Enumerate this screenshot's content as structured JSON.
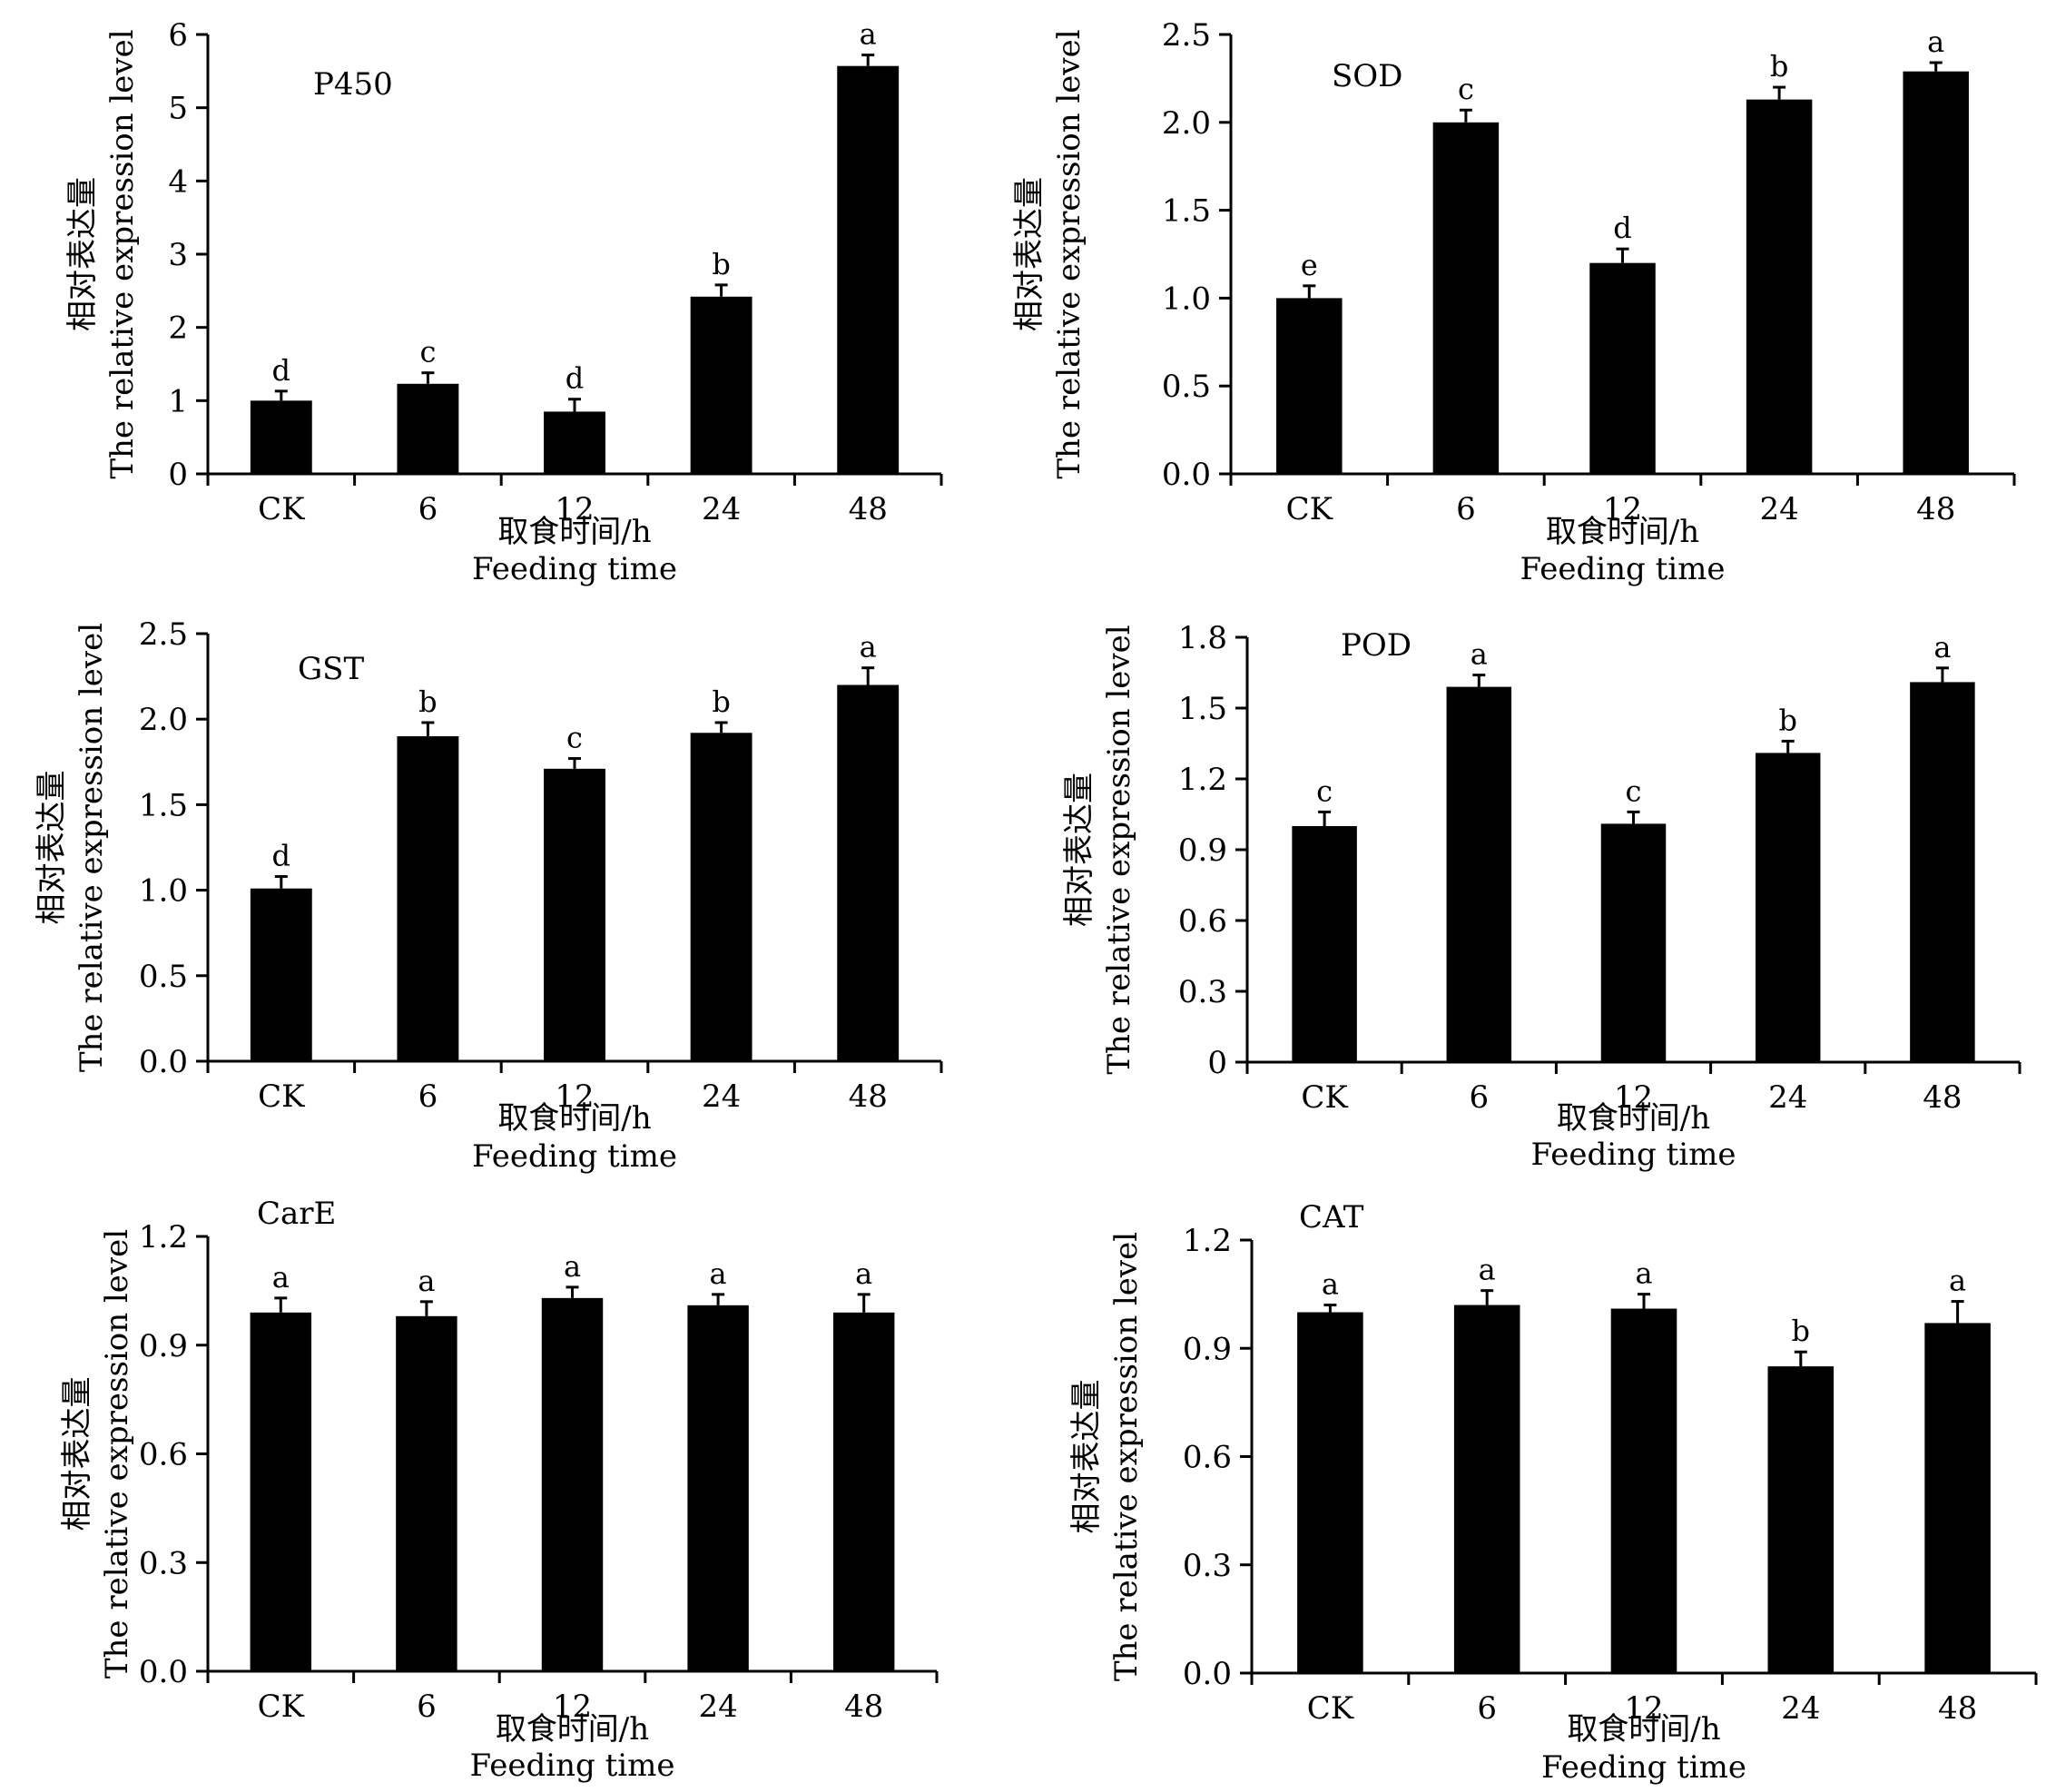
{
  "chart_data": [
    {
      "type": "bar",
      "title": "P450",
      "categories": [
        "CK",
        "6",
        "12",
        "24",
        "48"
      ],
      "values": [
        1.0,
        1.23,
        0.85,
        2.42,
        5.57
      ],
      "errors": [
        0.13,
        0.15,
        0.17,
        0.16,
        0.15
      ],
      "significance": [
        "d",
        "c",
        "d",
        "b",
        "a"
      ],
      "ylim": [
        0,
        6
      ],
      "yticks": [
        "0",
        "1",
        "2",
        "3",
        "4",
        "5",
        "6"
      ],
      "ylabel_cn": "相对表达量",
      "ylabel_en": "The relative expression level",
      "xlabel_cn": "取食时间/h",
      "xlabel_en": "Feeding time",
      "bar_color": "#000000"
    },
    {
      "type": "bar",
      "title": "SOD",
      "categories": [
        "CK",
        "6",
        "12",
        "24",
        "48"
      ],
      "values": [
        1.0,
        2.0,
        1.2,
        2.13,
        2.29
      ],
      "errors": [
        0.07,
        0.07,
        0.08,
        0.07,
        0.05
      ],
      "significance": [
        "e",
        "c",
        "d",
        "b",
        "a"
      ],
      "ylim": [
        0,
        2.5
      ],
      "yticks": [
        "0.0",
        "0.5",
        "1.0",
        "1.5",
        "2.0",
        "2.5"
      ],
      "ylabel_cn": "相对表达量",
      "ylabel_en": "The relative expression level",
      "xlabel_cn": "取食时间/h",
      "xlabel_en": "Feeding time",
      "bar_color": "#000000"
    },
    {
      "type": "bar",
      "title": "GST",
      "categories": [
        "CK",
        "6",
        "12",
        "24",
        "48"
      ],
      "values": [
        1.01,
        1.9,
        1.71,
        1.92,
        2.2
      ],
      "errors": [
        0.07,
        0.08,
        0.06,
        0.06,
        0.1
      ],
      "significance": [
        "d",
        "b",
        "c",
        "b",
        "a"
      ],
      "ylim": [
        0,
        2.5
      ],
      "yticks": [
        "0.0",
        "0.5",
        "1.0",
        "1.5",
        "2.0",
        "2.5"
      ],
      "ylabel_cn": "相对表达量",
      "ylabel_en": "The relative expression level",
      "xlabel_cn": "取食时间/h",
      "xlabel_en": "Feeding time",
      "bar_color": "#000000"
    },
    {
      "type": "bar",
      "title": "POD",
      "categories": [
        "CK",
        "6",
        "12",
        "24",
        "48"
      ],
      "values": [
        1.0,
        1.59,
        1.01,
        1.31,
        1.61
      ],
      "errors": [
        0.06,
        0.05,
        0.05,
        0.05,
        0.06
      ],
      "significance": [
        "c",
        "a",
        "c",
        "b",
        "a"
      ],
      "ylim": [
        0,
        1.8
      ],
      "yticks": [
        "0",
        "0.3",
        "0.6",
        "0.9",
        "1.2",
        "1.5",
        "1.8"
      ],
      "ylabel_cn": "相对表达量",
      "ylabel_en": "The relative expression level",
      "xlabel_cn": "取食时间/h",
      "xlabel_en": "Feeding time",
      "bar_color": "#000000"
    },
    {
      "type": "bar",
      "title": "CarE",
      "categories": [
        "CK",
        "6",
        "12",
        "24",
        "48"
      ],
      "values": [
        0.99,
        0.98,
        1.03,
        1.01,
        0.99
      ],
      "errors": [
        0.04,
        0.04,
        0.03,
        0.03,
        0.05
      ],
      "significance": [
        "a",
        "a",
        "a",
        "a",
        "a"
      ],
      "ylim": [
        0,
        1.2
      ],
      "yticks": [
        "0.0",
        "0.3",
        "0.6",
        "0.9",
        "1.2"
      ],
      "ylabel_cn": "相对表达量",
      "ylabel_en": "The relative expression level",
      "xlabel_cn": "取食时间/h",
      "xlabel_en": "Feeding time",
      "bar_color": "#000000"
    },
    {
      "type": "bar",
      "title": "CAT",
      "categories": [
        "CK",
        "6",
        "12",
        "24",
        "48"
      ],
      "values": [
        1.0,
        1.02,
        1.01,
        0.85,
        0.97
      ],
      "errors": [
        0.02,
        0.04,
        0.04,
        0.04,
        0.06
      ],
      "significance": [
        "a",
        "a",
        "a",
        "b",
        "a"
      ],
      "ylim": [
        0,
        1.2
      ],
      "yticks": [
        "0.0",
        "0.3",
        "0.6",
        "0.9",
        "1.2"
      ],
      "ylabel_cn": "相对表达量",
      "ylabel_en": "The relative expression level",
      "xlabel_cn": "取食时间/h",
      "xlabel_en": "Feeding time",
      "bar_color": "#000000"
    }
  ]
}
